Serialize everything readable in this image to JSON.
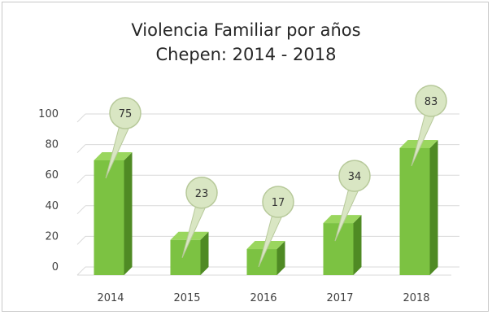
{
  "chart_data": {
    "type": "bar",
    "title": "Violencia Familiar por años",
    "subtitle": "Chepen: 2014 - 2018",
    "categories": [
      "2014",
      "2015",
      "2016",
      "2017",
      "2018"
    ],
    "values": [
      75,
      23,
      17,
      34,
      83
    ],
    "data_labels": [
      "75",
      "23",
      "17",
      "34",
      "83"
    ],
    "ylim": [
      0,
      100
    ],
    "yticks": [
      "0",
      "20",
      "40",
      "60",
      "80",
      "100"
    ],
    "grid": true,
    "legend": "none",
    "style": "3d-column-with-callouts",
    "colors": {
      "bar_front": "#7cc242",
      "bar_side": "#4f8a24",
      "bar_top": "#9ad65e",
      "callout_fill": "#d9e6c3",
      "callout_stroke": "#b7c99a",
      "grid": "#d9d9d9",
      "text": "#404040"
    }
  }
}
